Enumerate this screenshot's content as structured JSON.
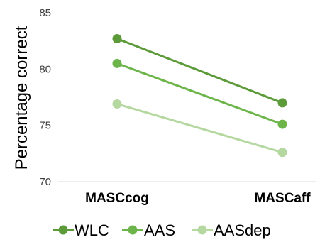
{
  "chart_data": {
    "type": "line",
    "title": "",
    "xlabel": "",
    "ylabel": "Percentage correct",
    "categories": [
      "MASCcog",
      "MASCaff"
    ],
    "ylim": [
      70,
      85
    ],
    "yticks": [
      "70",
      "75",
      "80",
      "85"
    ],
    "grid": false,
    "legend_position": "bottom",
    "series": [
      {
        "name": "WLC",
        "values": [
          82.7,
          77.0
        ],
        "color": "#5c9a3a"
      },
      {
        "name": "AAS",
        "values": [
          80.5,
          75.1
        ],
        "color": "#6db54a"
      },
      {
        "name": "AASdep",
        "values": [
          76.9,
          72.6
        ],
        "color": "#b4d8a0"
      }
    ]
  }
}
